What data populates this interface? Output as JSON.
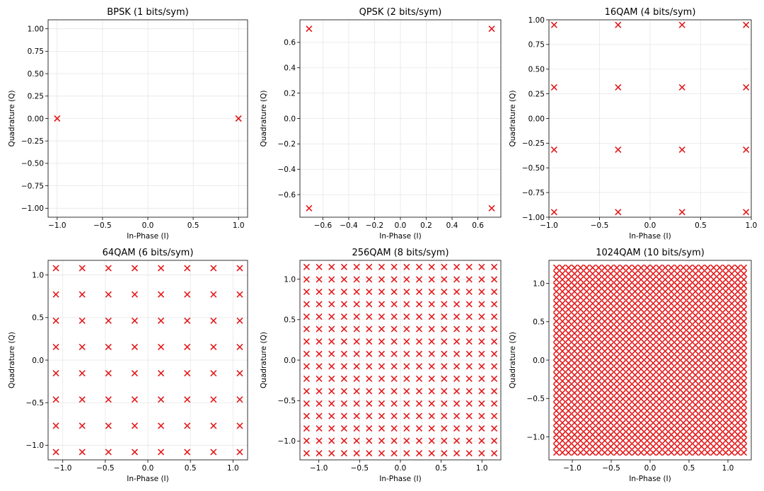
{
  "style": {
    "marker_color": "#e31a1c",
    "marker": "x-icon"
  },
  "chart_data": [
    {
      "type": "scatter",
      "title": "BPSK (1 bits/sym)",
      "xlabel": "In-Phase (I)",
      "ylabel": "Quadrature (Q)",
      "levels": [
        -1.0,
        1.0
      ],
      "q_levels": [
        0.0
      ],
      "xlim": [
        -1.1,
        1.1
      ],
      "ylim": [
        -1.1,
        1.1
      ],
      "xticks": [
        -1.0,
        -0.5,
        0.0,
        0.5,
        1.0
      ],
      "xtick_labels": [
        "−1.0",
        "−0.5",
        "0.0",
        "0.5",
        "1.0"
      ],
      "yticks": [
        -1.0,
        -0.75,
        -0.5,
        -0.25,
        0.0,
        0.25,
        0.5,
        0.75,
        1.0
      ],
      "ytick_labels": [
        "−1.00",
        "−0.75",
        "−0.50",
        "−0.25",
        "0.00",
        "0.25",
        "0.50",
        "0.75",
        "1.00"
      ],
      "grid": true
    },
    {
      "type": "scatter",
      "title": "QPSK (2 bits/sym)",
      "xlabel": "In-Phase (I)",
      "ylabel": "Quadrature (Q)",
      "levels": [
        -0.7071,
        0.7071
      ],
      "xlim": [
        -0.7778,
        0.7778
      ],
      "ylim": [
        -0.7778,
        0.7778
      ],
      "xticks": [
        -0.6,
        -0.4,
        -0.2,
        0.0,
        0.2,
        0.4,
        0.6
      ],
      "xtick_labels": [
        "−0.6",
        "−0.4",
        "−0.2",
        "0.0",
        "0.2",
        "0.4",
        "0.6"
      ],
      "yticks": [
        -0.6,
        -0.4,
        -0.2,
        0.0,
        0.2,
        0.4,
        0.6
      ],
      "ytick_labels": [
        "−0.6",
        "−0.4",
        "−0.2",
        "0.0",
        "0.2",
        "0.4",
        "0.6"
      ],
      "grid": true
    },
    {
      "type": "scatter",
      "title": "16QAM (4 bits/sym)",
      "xlabel": "In-Phase (I)",
      "ylabel": "Quadrature (Q)",
      "levels": [
        -0.9487,
        -0.3162,
        0.3162,
        0.9487
      ],
      "xlim": [
        -1.0,
        1.0
      ],
      "ylim": [
        -1.0,
        1.0
      ],
      "xticks": [
        -1.0,
        -0.5,
        0.0,
        0.5,
        1.0
      ],
      "xtick_labels": [
        "−1.0",
        "−0.5",
        "0.0",
        "0.5",
        "1.0"
      ],
      "yticks": [
        -1.0,
        -0.75,
        -0.5,
        -0.25,
        0.0,
        0.25,
        0.5,
        0.75,
        1.0
      ],
      "ytick_labels": [
        "−1.00",
        "−0.75",
        "−0.50",
        "−0.25",
        "0.00",
        "0.25",
        "0.50",
        "0.75",
        "1.00"
      ],
      "grid": true
    },
    {
      "type": "scatter",
      "title": "64QAM (6 bits/sym)",
      "xlabel": "In-Phase (I)",
      "ylabel": "Quadrature (Q)",
      "levels": [
        -1.0801,
        -0.7715,
        -0.4629,
        -0.1543,
        0.1543,
        0.4629,
        0.7715,
        1.0801
      ],
      "xlim": [
        -1.172,
        1.172
      ],
      "ylim": [
        -1.172,
        1.172
      ],
      "xticks": [
        -1.0,
        -0.5,
        0.0,
        0.5,
        1.0
      ],
      "xtick_labels": [
        "−1.0",
        "−0.5",
        "0.0",
        "0.5",
        "1.0"
      ],
      "yticks": [
        -1.0,
        -0.5,
        0.0,
        0.5,
        1.0
      ],
      "ytick_labels": [
        "−1.0",
        "−0.5",
        "0.0",
        "0.5",
        "1.0"
      ],
      "grid": true
    },
    {
      "type": "scatter",
      "title": "256QAM (8 bits/sym)",
      "xlabel": "In-Phase (I)",
      "ylabel": "Quadrature (Q)",
      "levels": [
        -1.1504,
        -0.9971,
        -0.8437,
        -0.6903,
        -0.5369,
        -0.3835,
        -0.2301,
        -0.0767,
        0.0767,
        0.2301,
        0.3835,
        0.5369,
        0.6903,
        0.8437,
        0.9971,
        1.1504
      ],
      "xlim": [
        -1.232,
        1.232
      ],
      "ylim": [
        -1.232,
        1.232
      ],
      "xticks": [
        -1.0,
        -0.5,
        0.0,
        0.5,
        1.0
      ],
      "xtick_labels": [
        "−1.0",
        "−0.5",
        "0.0",
        "0.5",
        "1.0"
      ],
      "yticks": [
        -1.0,
        -0.5,
        0.0,
        0.5,
        1.0
      ],
      "ytick_labels": [
        "−1.0",
        "−0.5",
        "0.0",
        "0.5",
        "1.0"
      ],
      "grid": true
    },
    {
      "type": "scatter",
      "title": "1024QAM (10 bits/sym)",
      "xlabel": "In-Phase (I)",
      "ylabel": "Quadrature (Q)",
      "grid_size": 32,
      "level_max": 1.2047,
      "xlim": [
        -1.3,
        1.3
      ],
      "ylim": [
        -1.3,
        1.3
      ],
      "xticks": [
        -1.0,
        -0.5,
        0.0,
        0.5,
        1.0
      ],
      "xtick_labels": [
        "−1.0",
        "−0.5",
        "0.0",
        "0.5",
        "1.0"
      ],
      "yticks": [
        -1.0,
        -0.5,
        0.0,
        0.5,
        1.0
      ],
      "ytick_labels": [
        "−1.0",
        "−0.5",
        "0.0",
        "0.5",
        "1.0"
      ],
      "grid": true
    }
  ]
}
